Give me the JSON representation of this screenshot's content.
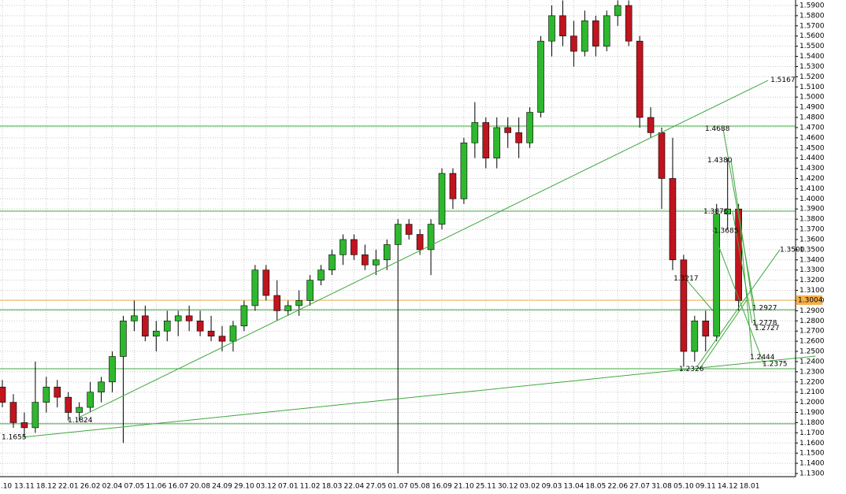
{
  "chart_data": {
    "type": "candlestick",
    "ylim": [
      1.1269,
      1.5954
    ],
    "yticks": [
      {
        "value": 1.13,
        "label": "1.1300"
      },
      {
        "value": 1.14,
        "label": "1.1400"
      },
      {
        "value": 1.15,
        "label": "1.1500"
      },
      {
        "value": 1.16,
        "label": "1.1600"
      },
      {
        "value": 1.17,
        "label": "1.1700"
      },
      {
        "value": 1.18,
        "label": "1.1800"
      },
      {
        "value": 1.19,
        "label": "1.1900"
      },
      {
        "value": 1.2,
        "label": "1.2000"
      },
      {
        "value": 1.21,
        "label": "1.2100"
      },
      {
        "value": 1.22,
        "label": "1.2200"
      },
      {
        "value": 1.23,
        "label": "1.2300"
      },
      {
        "value": 1.24,
        "label": "1.2400"
      },
      {
        "value": 1.25,
        "label": "1.2500"
      },
      {
        "value": 1.26,
        "label": "1.2600"
      },
      {
        "value": 1.27,
        "label": "1.2700"
      },
      {
        "value": 1.28,
        "label": "1.2800"
      },
      {
        "value": 1.29,
        "label": "1.2900"
      },
      {
        "value": 1.3,
        "label": "1.3000"
      },
      {
        "value": 1.31,
        "label": "1.3100"
      },
      {
        "value": 1.32,
        "label": "1.3200"
      },
      {
        "value": 1.33,
        "label": "1.3300"
      },
      {
        "value": 1.34,
        "label": "1.3400"
      },
      {
        "value": 1.35,
        "label": "1.3500"
      },
      {
        "value": 1.36,
        "label": "1.3600"
      },
      {
        "value": 1.37,
        "label": "1.3700"
      },
      {
        "value": 1.38,
        "label": "1.3800"
      },
      {
        "value": 1.39,
        "label": "1.3900"
      },
      {
        "value": 1.4,
        "label": "1.4000"
      },
      {
        "value": 1.41,
        "label": "1.4100"
      },
      {
        "value": 1.42,
        "label": "1.4200"
      },
      {
        "value": 1.43,
        "label": "1.4300"
      },
      {
        "value": 1.44,
        "label": "1.4400"
      },
      {
        "value": 1.45,
        "label": "1.4500"
      },
      {
        "value": 1.46,
        "label": "1.4600"
      },
      {
        "value": 1.47,
        "label": "1.4700"
      },
      {
        "value": 1.48,
        "label": "1.4800"
      },
      {
        "value": 1.49,
        "label": "1.4900"
      },
      {
        "value": 1.5,
        "label": "1.5000"
      },
      {
        "value": 1.51,
        "label": "1.5100"
      },
      {
        "value": 1.52,
        "label": "1.5200"
      },
      {
        "value": 1.53,
        "label": "1.5300"
      },
      {
        "value": 1.54,
        "label": "1.5400"
      },
      {
        "value": 1.55,
        "label": "1.5500"
      },
      {
        "value": 1.56,
        "label": "1.5600"
      },
      {
        "value": 1.57,
        "label": "1.5700"
      },
      {
        "value": 1.58,
        "label": "1.5800"
      },
      {
        "value": 1.59,
        "label": "1.5900"
      }
    ],
    "categories": [
      ".10",
      "13.11",
      "18.12",
      "22.01",
      "26.02",
      "02.04",
      "07.05",
      "11.06",
      "16.07",
      "20.08",
      "24.09",
      "29.10",
      "03.12",
      "07.01",
      "11.02",
      "18.03",
      "22.04",
      "27.05",
      "01.07",
      "05.08",
      "16.09",
      "21.10",
      "25.11",
      "30.12",
      "03.02",
      "09.03",
      "13.04",
      "18.05",
      "22.06",
      "27.07",
      "31.08",
      "05.10",
      "09.11",
      "14.12",
      "18.01"
    ],
    "up_color": "#2eb82e",
    "down_color": "#c0141e",
    "grid": true,
    "ohlc": [
      [
        1.215,
        1.222,
        1.195,
        1.2
      ],
      [
        1.2,
        1.208,
        1.175,
        1.18
      ],
      [
        1.18,
        1.19,
        1.1655,
        1.175
      ],
      [
        1.175,
        1.24,
        1.17,
        1.2
      ],
      [
        1.2,
        1.225,
        1.19,
        1.215
      ],
      [
        1.215,
        1.222,
        1.195,
        1.205
      ],
      [
        1.205,
        1.21,
        1.182,
        1.19
      ],
      [
        1.19,
        1.2,
        1.182,
        1.195
      ],
      [
        1.195,
        1.22,
        1.19,
        1.21
      ],
      [
        1.21,
        1.225,
        1.2,
        1.22
      ],
      [
        1.22,
        1.25,
        1.21,
        1.245
      ],
      [
        1.245,
        1.285,
        1.16,
        1.28
      ],
      [
        1.28,
        1.3,
        1.27,
        1.285
      ],
      [
        1.285,
        1.295,
        1.26,
        1.265
      ],
      [
        1.265,
        1.28,
        1.25,
        1.27
      ],
      [
        1.27,
        1.29,
        1.26,
        1.28
      ],
      [
        1.28,
        1.29,
        1.265,
        1.285
      ],
      [
        1.285,
        1.295,
        1.27,
        1.28
      ],
      [
        1.28,
        1.29,
        1.265,
        1.27
      ],
      [
        1.27,
        1.285,
        1.26,
        1.265
      ],
      [
        1.265,
        1.275,
        1.25,
        1.26
      ],
      [
        1.26,
        1.28,
        1.25,
        1.275
      ],
      [
        1.275,
        1.3,
        1.27,
        1.295
      ],
      [
        1.295,
        1.335,
        1.29,
        1.33
      ],
      [
        1.33,
        1.335,
        1.3,
        1.305
      ],
      [
        1.305,
        1.32,
        1.28,
        1.29
      ],
      [
        1.29,
        1.3,
        1.285,
        1.295
      ],
      [
        1.295,
        1.31,
        1.285,
        1.3
      ],
      [
        1.3,
        1.325,
        1.295,
        1.32
      ],
      [
        1.32,
        1.335,
        1.315,
        1.33
      ],
      [
        1.33,
        1.35,
        1.325,
        1.345
      ],
      [
        1.345,
        1.365,
        1.335,
        1.36
      ],
      [
        1.36,
        1.365,
        1.34,
        1.345
      ],
      [
        1.345,
        1.355,
        1.33,
        1.335
      ],
      [
        1.335,
        1.35,
        1.325,
        1.34
      ],
      [
        1.34,
        1.36,
        1.33,
        1.355
      ],
      [
        1.355,
        1.38,
        1.13,
        1.375
      ],
      [
        1.375,
        1.38,
        1.36,
        1.365
      ],
      [
        1.365,
        1.37,
        1.345,
        1.35
      ],
      [
        1.35,
        1.38,
        1.325,
        1.375
      ],
      [
        1.375,
        1.43,
        1.37,
        1.425
      ],
      [
        1.425,
        1.43,
        1.39,
        1.4
      ],
      [
        1.4,
        1.46,
        1.395,
        1.455
      ],
      [
        1.455,
        1.495,
        1.44,
        1.475
      ],
      [
        1.475,
        1.48,
        1.43,
        1.44
      ],
      [
        1.44,
        1.48,
        1.43,
        1.47
      ],
      [
        1.47,
        1.48,
        1.45,
        1.465
      ],
      [
        1.465,
        1.48,
        1.44,
        1.455
      ],
      [
        1.455,
        1.49,
        1.45,
        1.485
      ],
      [
        1.485,
        1.56,
        1.48,
        1.555
      ],
      [
        1.555,
        1.59,
        1.54,
        1.58
      ],
      [
        1.58,
        1.595,
        1.55,
        1.56
      ],
      [
        1.56,
        1.575,
        1.53,
        1.545
      ],
      [
        1.545,
        1.585,
        1.54,
        1.575
      ],
      [
        1.575,
        1.58,
        1.54,
        1.55
      ],
      [
        1.55,
        1.585,
        1.545,
        1.58
      ],
      [
        1.58,
        1.595,
        1.57,
        1.59
      ],
      [
        1.59,
        1.595,
        1.55,
        1.555
      ],
      [
        1.555,
        1.56,
        1.47,
        1.48
      ],
      [
        1.48,
        1.49,
        1.46,
        1.465
      ],
      [
        1.465,
        1.47,
        1.39,
        1.42
      ],
      [
        1.42,
        1.46,
        1.33,
        1.34
      ],
      [
        1.34,
        1.345,
        1.235,
        1.25
      ],
      [
        1.25,
        1.285,
        1.24,
        1.28
      ],
      [
        1.28,
        1.29,
        1.25,
        1.265
      ],
      [
        1.265,
        1.395,
        1.26,
        1.385
      ],
      [
        1.385,
        1.44,
        1.37,
        1.39
      ],
      [
        1.39,
        1.395,
        1.29,
        1.3
      ]
    ],
    "hlines": [
      1.4715,
      1.3879,
      1.291,
      1.233,
      1.1789
    ],
    "hline_color": "#3ea83e",
    "current_price": {
      "value": 1.3004,
      "label": "1.3004",
      "color": "#f5b049"
    },
    "trendlines": [
      [
        1.79,
        1.1656,
        74.0,
        1.2454
      ],
      [
        6.95,
        1.185,
        69.68,
        1.5164
      ],
      [
        63.23,
        1.2353,
        70.75,
        1.35
      ],
      [
        65.59,
        1.4688,
        68.46,
        1.2927
      ],
      [
        66.31,
        1.438,
        68.6,
        1.2727
      ],
      [
        66.45,
        1.3876,
        68.24,
        1.2778
      ],
      [
        67.17,
        1.3685,
        68.24,
        1.2444
      ],
      [
        64.66,
        1.3685,
        69.3,
        1.2375
      ],
      [
        62.15,
        1.3217,
        64.66,
        1.29
      ],
      [
        63.44,
        1.2326,
        67.74,
        1.3004
      ]
    ],
    "trend_color": "#3ea83e",
    "annotations": [
      {
        "label": "1.1655",
        "value": 1.1655,
        "x": -0.07
      },
      {
        "label": "1.1824",
        "value": 1.1824,
        "x": 5.95
      },
      {
        "label": "1.4688",
        "value": 1.4688,
        "x": 63.94
      },
      {
        "label": "1.4380",
        "value": 1.438,
        "x": 64.16
      },
      {
        "label": "1.3876",
        "value": 1.3876,
        "x": 63.8
      },
      {
        "label": "1.3685",
        "value": 1.3685,
        "x": 64.73
      },
      {
        "label": "1.3217",
        "value": 1.3217,
        "x": 61.08
      },
      {
        "label": "1.2927",
        "value": 1.2927,
        "x": 68.24
      },
      {
        "label": "1.2778",
        "value": 1.2778,
        "x": 68.24
      },
      {
        "label": "1.2727",
        "value": 1.2727,
        "x": 68.46
      },
      {
        "label": "1.2444",
        "value": 1.2444,
        "x": 68.03
      },
      {
        "label": "1.2375",
        "value": 1.2375,
        "x": 69.18
      },
      {
        "label": "1.2326",
        "value": 1.2326,
        "x": 61.58
      },
      {
        "label": "1.3500",
        "value": 1.35,
        "x": 70.75
      },
      {
        "label": "1.5167",
        "value": 1.5167,
        "x": 69.9
      }
    ]
  }
}
